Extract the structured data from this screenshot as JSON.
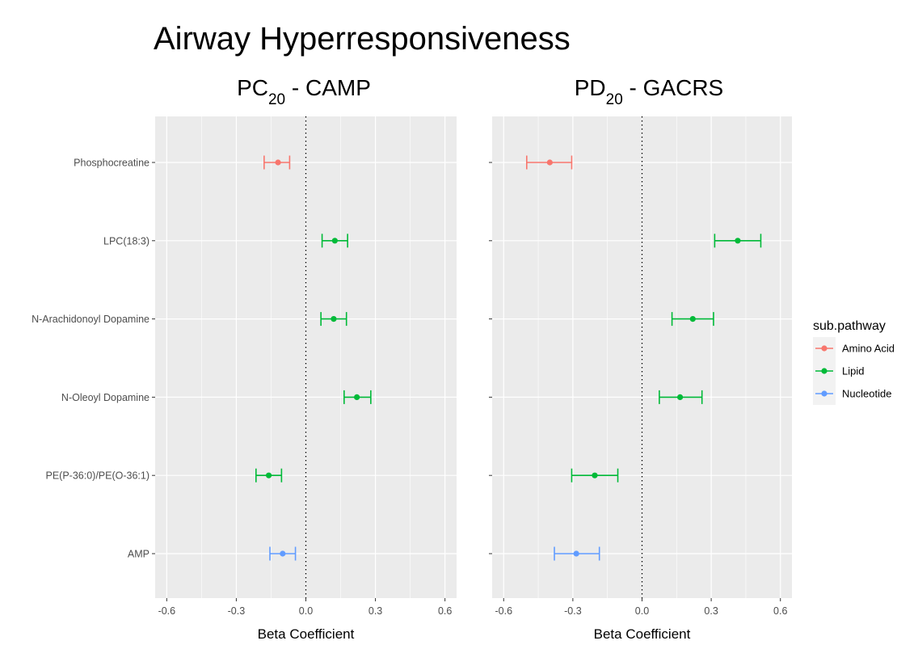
{
  "chart_data": {
    "type": "errorbar",
    "title": "Airway Hyperresponsiveness",
    "categories": [
      "Phosphocreatine",
      "LPC(18:3)",
      "N-Arachidonoyl Dopamine",
      "N-Oleoyl Dopamine",
      "PE(P-36:0)/PE(O-36:1)",
      "AMP"
    ],
    "xlabel": "Beta Coefficient",
    "xlim": [
      -0.65,
      0.65
    ],
    "xticks": [
      -0.6,
      -0.3,
      0.0,
      0.3,
      0.6
    ],
    "xtick_labels": [
      "-0.6",
      "-0.3",
      "0.0",
      "0.3",
      "0.6"
    ],
    "reference_line": 0,
    "legend": {
      "title": "sub.pathway",
      "position": "right",
      "entries": [
        {
          "label": "Amino Acid",
          "color": "#F8766D"
        },
        {
          "label": "Lipid",
          "color": "#00BA38"
        },
        {
          "label": "Nucleotide",
          "color": "#619CFF"
        }
      ]
    },
    "panels": [
      {
        "title_main": "PC",
        "title_sub": "20",
        "title_rest": " - CAMP",
        "show_category_labels": true,
        "points": [
          {
            "category": "Phosphocreatine",
            "pathway": "Amino Acid",
            "estimate": -0.12,
            "lower": -0.18,
            "upper": -0.07
          },
          {
            "category": "LPC(18:3)",
            "pathway": "Lipid",
            "estimate": 0.125,
            "lower": 0.07,
            "upper": 0.18
          },
          {
            "category": "N-Arachidonoyl Dopamine",
            "pathway": "Lipid",
            "estimate": 0.12,
            "lower": 0.065,
            "upper": 0.175
          },
          {
            "category": "N-Oleoyl Dopamine",
            "pathway": "Lipid",
            "estimate": 0.22,
            "lower": 0.165,
            "upper": 0.28
          },
          {
            "category": "PE(P-36:0)/PE(O-36:1)",
            "pathway": "Lipid",
            "estimate": -0.16,
            "lower": -0.215,
            "upper": -0.105
          },
          {
            "category": "AMP",
            "pathway": "Nucleotide",
            "estimate": -0.1,
            "lower": -0.155,
            "upper": -0.045
          }
        ]
      },
      {
        "title_main": "PD",
        "title_sub": "20",
        "title_rest": " - GACRS",
        "show_category_labels": false,
        "points": [
          {
            "category": "Phosphocreatine",
            "pathway": "Amino Acid",
            "estimate": -0.4,
            "lower": -0.5,
            "upper": -0.305
          },
          {
            "category": "LPC(18:3)",
            "pathway": "Lipid",
            "estimate": 0.415,
            "lower": 0.315,
            "upper": 0.515
          },
          {
            "category": "N-Arachidonoyl Dopamine",
            "pathway": "Lipid",
            "estimate": 0.22,
            "lower": 0.13,
            "upper": 0.31
          },
          {
            "category": "N-Oleoyl Dopamine",
            "pathway": "Lipid",
            "estimate": 0.165,
            "lower": 0.075,
            "upper": 0.26
          },
          {
            "category": "PE(P-36:0)/PE(O-36:1)",
            "pathway": "Lipid",
            "estimate": -0.205,
            "lower": -0.305,
            "upper": -0.105
          },
          {
            "category": "AMP",
            "pathway": "Nucleotide",
            "estimate": -0.285,
            "lower": -0.38,
            "upper": -0.185
          }
        ]
      }
    ]
  }
}
